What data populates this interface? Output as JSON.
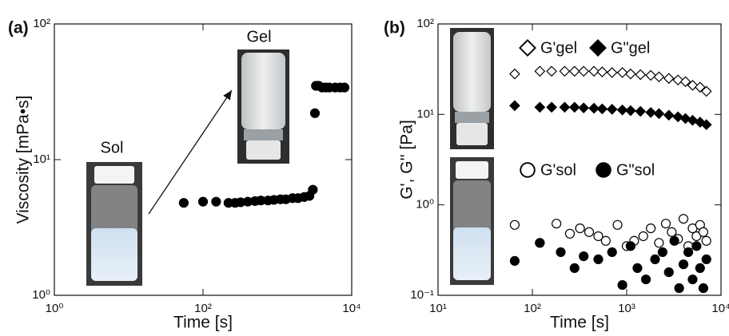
{
  "chart_data": [
    {
      "type": "scatter",
      "panel": "(a)",
      "xlabel": "Time [s]",
      "ylabel": "Viscosity [mPa•s]",
      "log_x": true,
      "log_y": true,
      "xlim": [
        1,
        10000
      ],
      "ylim": [
        1,
        100
      ],
      "xticks": [
        {
          "value": 1,
          "label": "10⁰"
        },
        {
          "value": 100,
          "label": "10²"
        },
        {
          "value": 10000,
          "label": "10⁴"
        }
      ],
      "yticks": [
        {
          "value": 1,
          "label": "10⁰"
        },
        {
          "value": 10,
          "label": "10¹"
        },
        {
          "value": 100,
          "label": "10²"
        }
      ],
      "annotations": [
        "Sol",
        "Gel"
      ],
      "series": [
        {
          "color": "#000000",
          "marker": "circle-filled",
          "x": [
            55,
            100,
            150,
            220,
            270,
            320,
            400,
            500,
            600,
            750,
            900,
            1100,
            1300,
            1600,
            1900,
            2300,
            2700,
            3000,
            3200,
            3300,
            3600,
            4000,
            4500,
            5000,
            6000,
            7000,
            8000
          ],
          "values": [
            4.8,
            4.9,
            4.9,
            4.8,
            4.8,
            4.85,
            4.9,
            4.95,
            5.0,
            5.0,
            5.05,
            5.1,
            5.1,
            5.2,
            5.2,
            5.3,
            5.4,
            6.0,
            22,
            35,
            35,
            34,
            34,
            34,
            34,
            34,
            34
          ]
        }
      ]
    },
    {
      "type": "scatter",
      "panel": "(b)",
      "xlabel": "Time [s]",
      "ylabel": "G', G'' [Pa]",
      "log_x": true,
      "log_y": true,
      "xlim": [
        10,
        10000
      ],
      "ylim": [
        0.1,
        100
      ],
      "xticks": [
        {
          "value": 10,
          "label": "10¹"
        },
        {
          "value": 100,
          "label": "10²"
        },
        {
          "value": 1000,
          "label": "10³"
        },
        {
          "value": 10000,
          "label": "10⁴"
        }
      ],
      "yticks": [
        {
          "value": 0.1,
          "label": "10⁻¹"
        },
        {
          "value": 1,
          "label": "10⁰"
        },
        {
          "value": 10,
          "label": "10¹"
        },
        {
          "value": 100,
          "label": "10²"
        }
      ],
      "series": [
        {
          "name": "G'gel",
          "color": "#000000",
          "marker": "diamond-open",
          "x": [
            65,
            120,
            160,
            220,
            280,
            350,
            450,
            550,
            700,
            900,
            1100,
            1400,
            1800,
            2200,
            2800,
            3500,
            4200,
            5000,
            6000,
            7000
          ],
          "values": [
            28,
            30,
            30,
            30,
            30,
            30,
            30,
            29.5,
            29,
            29,
            28,
            27.5,
            27,
            26,
            25,
            24,
            23,
            21,
            20,
            18
          ]
        },
        {
          "name": "G\"gel",
          "color": "#000000",
          "marker": "diamond-filled",
          "x": [
            65,
            120,
            160,
            220,
            280,
            350,
            450,
            550,
            700,
            900,
            1100,
            1400,
            1800,
            2200,
            2800,
            3500,
            4200,
            5000,
            6000,
            7000
          ],
          "values": [
            12.5,
            12,
            12,
            12,
            12,
            11.8,
            11.7,
            11.5,
            11.4,
            11.2,
            11,
            10.8,
            10.5,
            10.2,
            9.8,
            9.4,
            9,
            8.6,
            8.2,
            7.7
          ]
        },
        {
          "name": "G'sol",
          "color": "#000000",
          "marker": "circle-open",
          "x": [
            65,
            120,
            180,
            250,
            320,
            400,
            500,
            600,
            800,
            1000,
            1200,
            1500,
            1800,
            2200,
            2600,
            3000,
            3500,
            4000,
            4500,
            5000,
            5500,
            6000,
            6500,
            7000
          ],
          "values": [
            0.6,
            0.38,
            0.62,
            0.48,
            0.55,
            0.5,
            0.45,
            0.4,
            0.6,
            0.35,
            0.4,
            0.45,
            0.55,
            0.38,
            0.62,
            0.5,
            0.42,
            0.7,
            0.35,
            0.55,
            0.45,
            0.6,
            0.5,
            0.4
          ]
        },
        {
          "name": "G\"sol",
          "color": "#000000",
          "marker": "circle-filled",
          "x": [
            65,
            120,
            200,
            280,
            350,
            500,
            700,
            900,
            1100,
            1300,
            1600,
            2000,
            2400,
            2800,
            3200,
            3600,
            4000,
            4500,
            5000,
            5500,
            6000,
            6500,
            7000
          ],
          "values": [
            0.24,
            0.38,
            0.3,
            0.2,
            0.27,
            0.25,
            0.3,
            0.13,
            0.35,
            0.2,
            0.15,
            0.25,
            0.3,
            0.18,
            0.4,
            0.12,
            0.22,
            0.3,
            0.15,
            0.35,
            0.2,
            0.12,
            0.25
          ]
        }
      ]
    }
  ]
}
